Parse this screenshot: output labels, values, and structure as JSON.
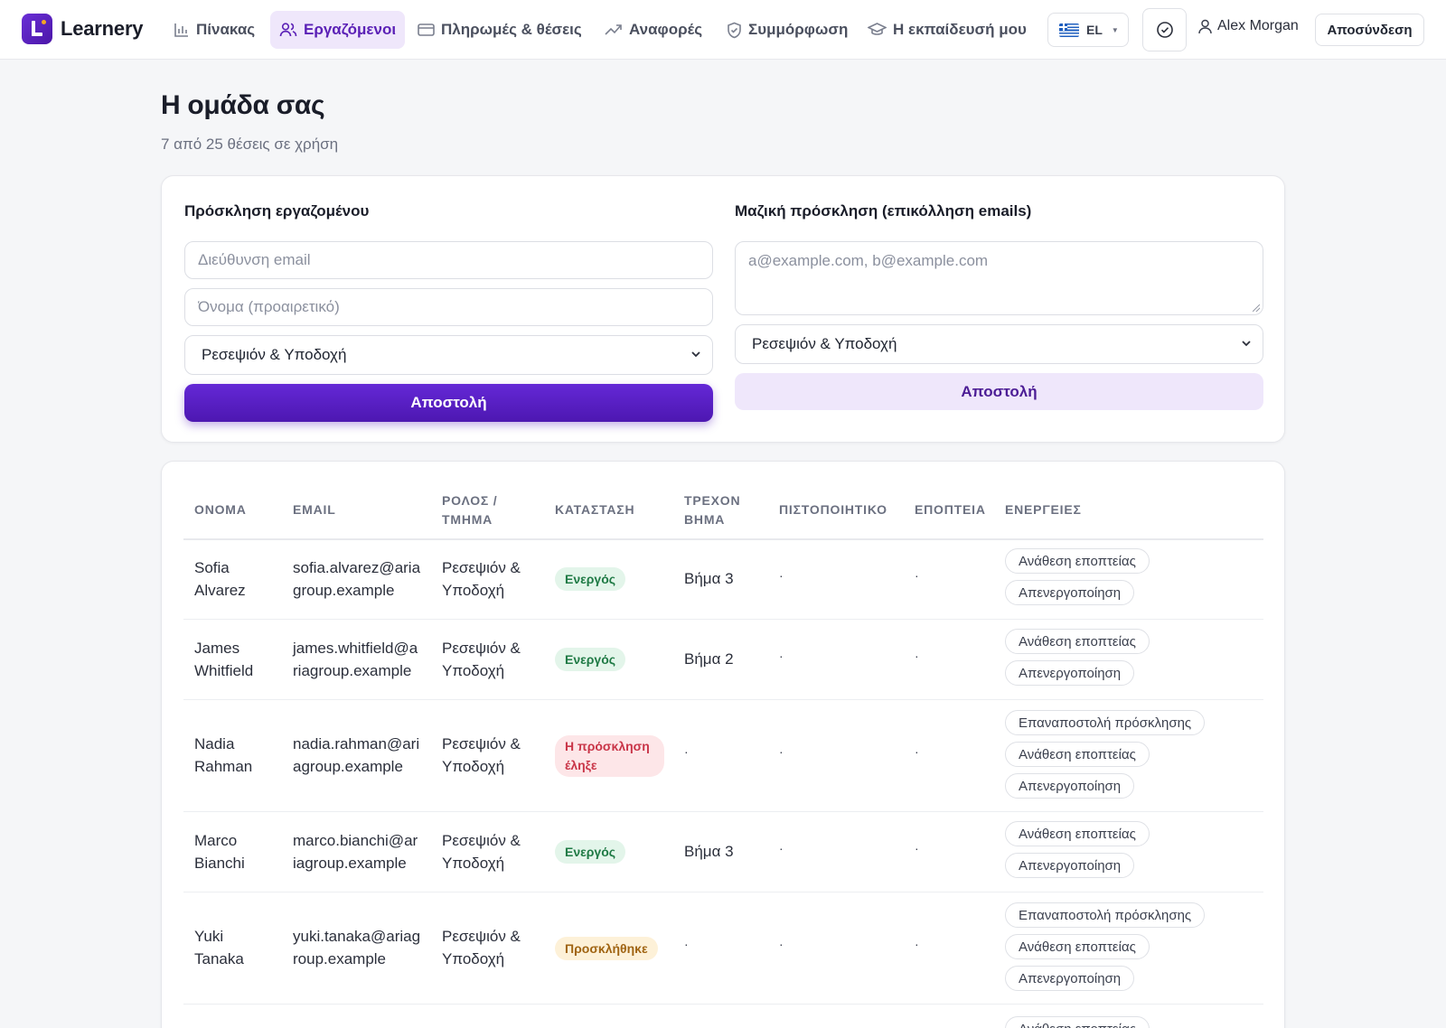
{
  "brand": {
    "name": "Learnery",
    "accent": "#5b21b6"
  },
  "nav": {
    "items": [
      {
        "label": "Πίνακας",
        "icon": "bar-chart-icon",
        "active": false
      },
      {
        "label": "Εργαζόμενοι",
        "icon": "users-icon",
        "active": true
      },
      {
        "label": "Πληρωμές & θέσεις",
        "icon": "credit-card-icon",
        "active": false
      },
      {
        "label": "Αναφορές",
        "icon": "trending-up-icon",
        "active": false
      },
      {
        "label": "Συμμόρφωση",
        "icon": "shield-check-icon",
        "active": false
      },
      {
        "label": "Η εκπαίδευσή μου",
        "icon": "graduation-cap-icon",
        "active": false
      }
    ],
    "language": "EL",
    "user_name": "Alex Morgan",
    "logout_label": "Αποσύνδεση"
  },
  "header": {
    "title": "Η ομάδα σας",
    "subtitle": "7 από 25 θέσεις σε χρήση"
  },
  "invite": {
    "single": {
      "title": "Πρόσκληση εργαζομένου",
      "email_placeholder": "Διεύθυνση email",
      "name_placeholder": "Όνομα (προαιρετικό)",
      "department": "Ρεσεψιόν & Υποδοχή",
      "submit_label": "Αποστολή"
    },
    "bulk": {
      "title": "Μαζική πρόσκληση (επικόλληση emails)",
      "emails_placeholder": "a@example.com, b@example.com",
      "department": "Ρεσεψιόν & Υποδοχή",
      "submit_label": "Αποστολή"
    }
  },
  "table": {
    "headers": {
      "name": "ΟΝΟΜΑ",
      "email": "EMAIL",
      "role_1": "ΡΟΛΟΣ /",
      "role_2": "ΤΜΗΜΑ",
      "status": "ΚΑΤΑΣΤΑΣΗ",
      "step_1": "ΤΡΕΧΟΝ",
      "step_2": "ΒΗΜΑ",
      "certificate": "ΠΙΣΤΟΠΟΙΗΤΙΚΟ",
      "supervision": "ΕΠΟΠΤΕΙΑ",
      "actions": "ΕΝΕΡΓΕΙΕΣ"
    },
    "rows": [
      {
        "first": "Sofia",
        "last": "Alvarez",
        "email_1": "sofia.alvarez@aria",
        "email_2": "group.example",
        "role_1": "Ρεσεψιόν &",
        "role_2": "Υποδοχή",
        "status": "Ενεργός",
        "step": "Βήμα 3",
        "certificate": "·",
        "supervision": "·",
        "actions": [
          "Ανάθεση εποπτείας",
          "Απενεργοποίηση"
        ]
      },
      {
        "first": "James",
        "last": "Whitfield",
        "email_1": "james.whitfield@a",
        "email_2": "riagroup.example",
        "role_1": "Ρεσεψιόν &",
        "role_2": "Υποδοχή",
        "status": "Ενεργός",
        "step": "Βήμα 2",
        "certificate": "·",
        "supervision": "·",
        "actions": [
          "Ανάθεση εποπτείας",
          "Απενεργοποίηση"
        ]
      },
      {
        "first": "Nadia",
        "last": "Rahman",
        "email_1": "nadia.rahman@ari",
        "email_2": "agroup.example",
        "role_1": "Ρεσεψιόν &",
        "role_2": "Υποδοχή",
        "status": "Η πρόσκληση έληξε",
        "step": "·",
        "certificate": "·",
        "supervision": "·",
        "actions": [
          "Επαναποστολή πρόσκλησης",
          "Ανάθεση εποπτείας",
          "Απενεργοποίηση"
        ]
      },
      {
        "first": "Marco",
        "last": "Bianchi",
        "email_1": "marco.bianchi@ar",
        "email_2": "iagroup.example",
        "role_1": "Ρεσεψιόν &",
        "role_2": "Υποδοχή",
        "status": "Ενεργός",
        "step": "Βήμα 3",
        "certificate": "·",
        "supervision": "·",
        "actions": [
          "Ανάθεση εποπτείας",
          "Απενεργοποίηση"
        ]
      },
      {
        "first": "Yuki",
        "last": "Tanaka",
        "email_1": "yuki.tanaka@ariag",
        "email_2": "roup.example",
        "role_1": "Ρεσεψιόν &",
        "role_2": "Υποδοχή",
        "status": "Προσκλήθηκε",
        "step": "·",
        "certificate": "·",
        "supervision": "·",
        "actions": [
          "Επαναποστολή πρόσκλησης",
          "Ανάθεση εποπτείας",
          "Απενεργοποίηση"
        ]
      }
    ],
    "partial_row_action": "Ανάθεση εποπτείας"
  },
  "colors": {
    "active_badge": "#1f7a45",
    "expired_badge": "#c93548",
    "invited_badge": "#a06412",
    "primary_button": "#5a1fc4"
  }
}
